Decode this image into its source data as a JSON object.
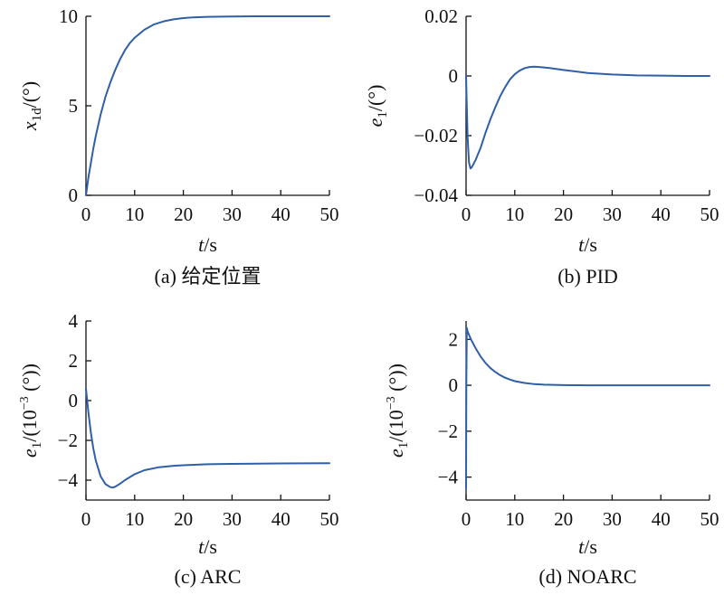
{
  "colors": {
    "line": "#2f5fa8",
    "axis": "#111111"
  },
  "chart_data": [
    {
      "type": "line",
      "caption": "(a) 给定位置",
      "xlabel_var": "t",
      "xlabel_unit": "/s",
      "ylabel_var": "x",
      "ylabel_sub": "1d",
      "ylabel_unit": "/(°)",
      "xlim": [
        0,
        50
      ],
      "ylim": [
        0,
        10
      ],
      "xticks": [
        0,
        10,
        20,
        30,
        40,
        50
      ],
      "yticks": [
        0,
        5,
        10
      ],
      "yticklabels": [
        "0",
        "5",
        "10"
      ],
      "series": [
        {
          "x": [
            0,
            0.5,
            1,
            1.5,
            2,
            3,
            4,
            5,
            6,
            7,
            8,
            9,
            10,
            12,
            14,
            16,
            18,
            20,
            22,
            25,
            30,
            35,
            40,
            45,
            50
          ],
          "y": [
            0,
            1.0,
            1.8,
            2.6,
            3.3,
            4.5,
            5.5,
            6.3,
            7.0,
            7.6,
            8.1,
            8.5,
            8.8,
            9.25,
            9.55,
            9.72,
            9.83,
            9.9,
            9.94,
            9.97,
            9.99,
            10,
            10,
            10,
            10
          ]
        }
      ]
    },
    {
      "type": "line",
      "caption": "(b) PID",
      "xlabel_var": "t",
      "xlabel_unit": "/s",
      "ylabel_var": "e",
      "ylabel_sub": "1",
      "ylabel_unit": "/(°)",
      "xlim": [
        0,
        50
      ],
      "ylim": [
        -0.04,
        0.02
      ],
      "xticks": [
        0,
        10,
        20,
        30,
        40,
        50
      ],
      "yticks": [
        -0.04,
        -0.02,
        0,
        0.02
      ],
      "yticklabels": [
        "−0.04",
        "−0.02",
        "0",
        "0.02"
      ],
      "series": [
        {
          "x": [
            0,
            0.3,
            0.6,
            0.9,
            1.2,
            2,
            3,
            4,
            5,
            6,
            7,
            8,
            9,
            10,
            11,
            12,
            13,
            14,
            15,
            17,
            20,
            25,
            30,
            35,
            40,
            45,
            50
          ],
          "y": [
            0.0,
            -0.02,
            -0.029,
            -0.031,
            -0.0305,
            -0.028,
            -0.024,
            -0.019,
            -0.0145,
            -0.0105,
            -0.0068,
            -0.0038,
            -0.0012,
            0.0006,
            0.0018,
            0.0026,
            0.003,
            0.0031,
            0.003,
            0.0027,
            0.002,
            0.001,
            0.0005,
            0.0002,
            0.0001,
            0.0,
            0.0
          ]
        }
      ]
    },
    {
      "type": "line",
      "caption": "(c) ARC",
      "xlabel_var": "t",
      "xlabel_unit": "/s",
      "ylabel_var": "e",
      "ylabel_sub": "1",
      "ylabel_unit": "/(10",
      "ylabel_exp": "−3",
      "ylabel_tail": " (°))",
      "xlim": [
        0,
        50
      ],
      "ylim": [
        -5,
        4
      ],
      "xticks": [
        0,
        10,
        20,
        30,
        40,
        50
      ],
      "yticks": [
        -4,
        -2,
        0,
        2,
        4
      ],
      "yticklabels": [
        "−4",
        "−2",
        "0",
        "2",
        "4"
      ],
      "series": [
        {
          "x": [
            0,
            0.5,
            1,
            1.5,
            2,
            3,
            4,
            5,
            5.5,
            6,
            7,
            8,
            10,
            12,
            15,
            18,
            20,
            25,
            30,
            40,
            50
          ],
          "y": [
            0.6,
            -0.6,
            -1.6,
            -2.4,
            -3.0,
            -3.8,
            -4.2,
            -4.35,
            -4.37,
            -4.33,
            -4.18,
            -4.0,
            -3.7,
            -3.5,
            -3.35,
            -3.28,
            -3.25,
            -3.2,
            -3.18,
            -3.16,
            -3.15
          ]
        }
      ]
    },
    {
      "type": "line",
      "caption": "(d) NOARC",
      "xlabel_var": "t",
      "xlabel_unit": "/s",
      "ylabel_var": "e",
      "ylabel_sub": "1",
      "ylabel_unit": "/(10",
      "ylabel_exp": "−3",
      "ylabel_tail": " (°))",
      "xlim": [
        0,
        50
      ],
      "ylim": [
        -5,
        2.8
      ],
      "xticks": [
        0,
        10,
        20,
        30,
        40,
        50
      ],
      "yticks": [
        -4,
        -2,
        0,
        2
      ],
      "yticklabels": [
        "−4",
        "−2",
        "0",
        "2"
      ],
      "series": [
        {
          "x": [
            0,
            0.05,
            0.15,
            0.3,
            1,
            2,
            3,
            4,
            5,
            6,
            7,
            8,
            9,
            10,
            12,
            14,
            16,
            20,
            25,
            30,
            40,
            50
          ],
          "y": [
            -4.5,
            0.0,
            2.5,
            2.35,
            2.0,
            1.6,
            1.25,
            0.97,
            0.75,
            0.58,
            0.44,
            0.33,
            0.25,
            0.18,
            0.1,
            0.05,
            0.03,
            0.01,
            0.0,
            0.0,
            0.0,
            0.0
          ]
        }
      ]
    }
  ]
}
